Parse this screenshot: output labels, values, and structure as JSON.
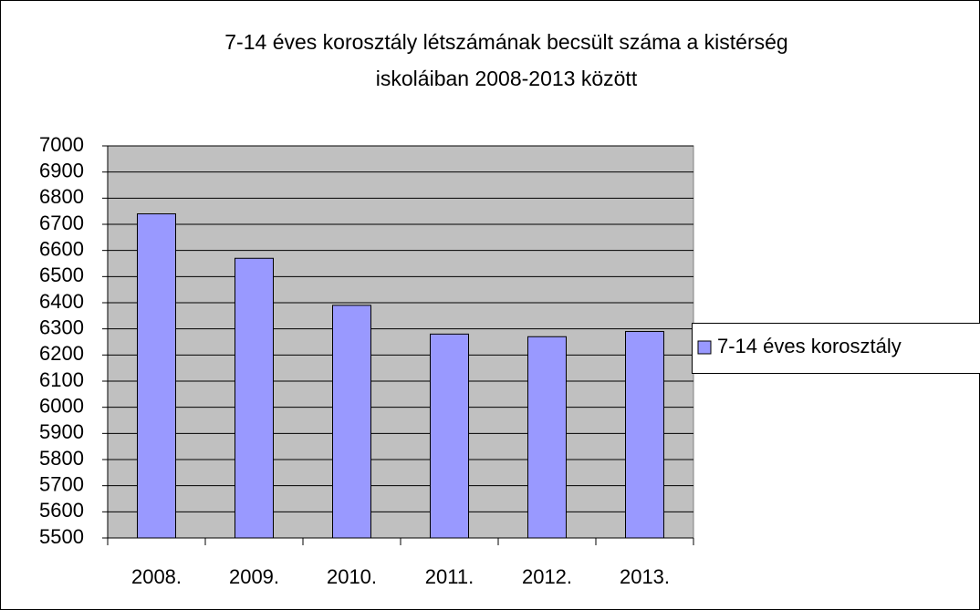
{
  "chart_data": {
    "type": "bar",
    "title": [
      "7-14 éves korosztály létszámának becsült száma a kistérség",
      "iskoláiban 2008-2013 között"
    ],
    "categories": [
      "2008.",
      "2009.",
      "2010.",
      "2011.",
      "2012.",
      "2013."
    ],
    "series": [
      {
        "name": "7-14 éves korosztály",
        "color": "#9999ff",
        "values": [
          6740,
          6570,
          6390,
          6280,
          6270,
          6290
        ]
      }
    ],
    "ylim": [
      5500,
      7000
    ],
    "yticks": [
      5500,
      5600,
      5700,
      5800,
      5900,
      6000,
      6100,
      6200,
      6300,
      6400,
      6500,
      6600,
      6700,
      6800,
      6900,
      7000
    ],
    "grid": true,
    "legend": "right"
  }
}
